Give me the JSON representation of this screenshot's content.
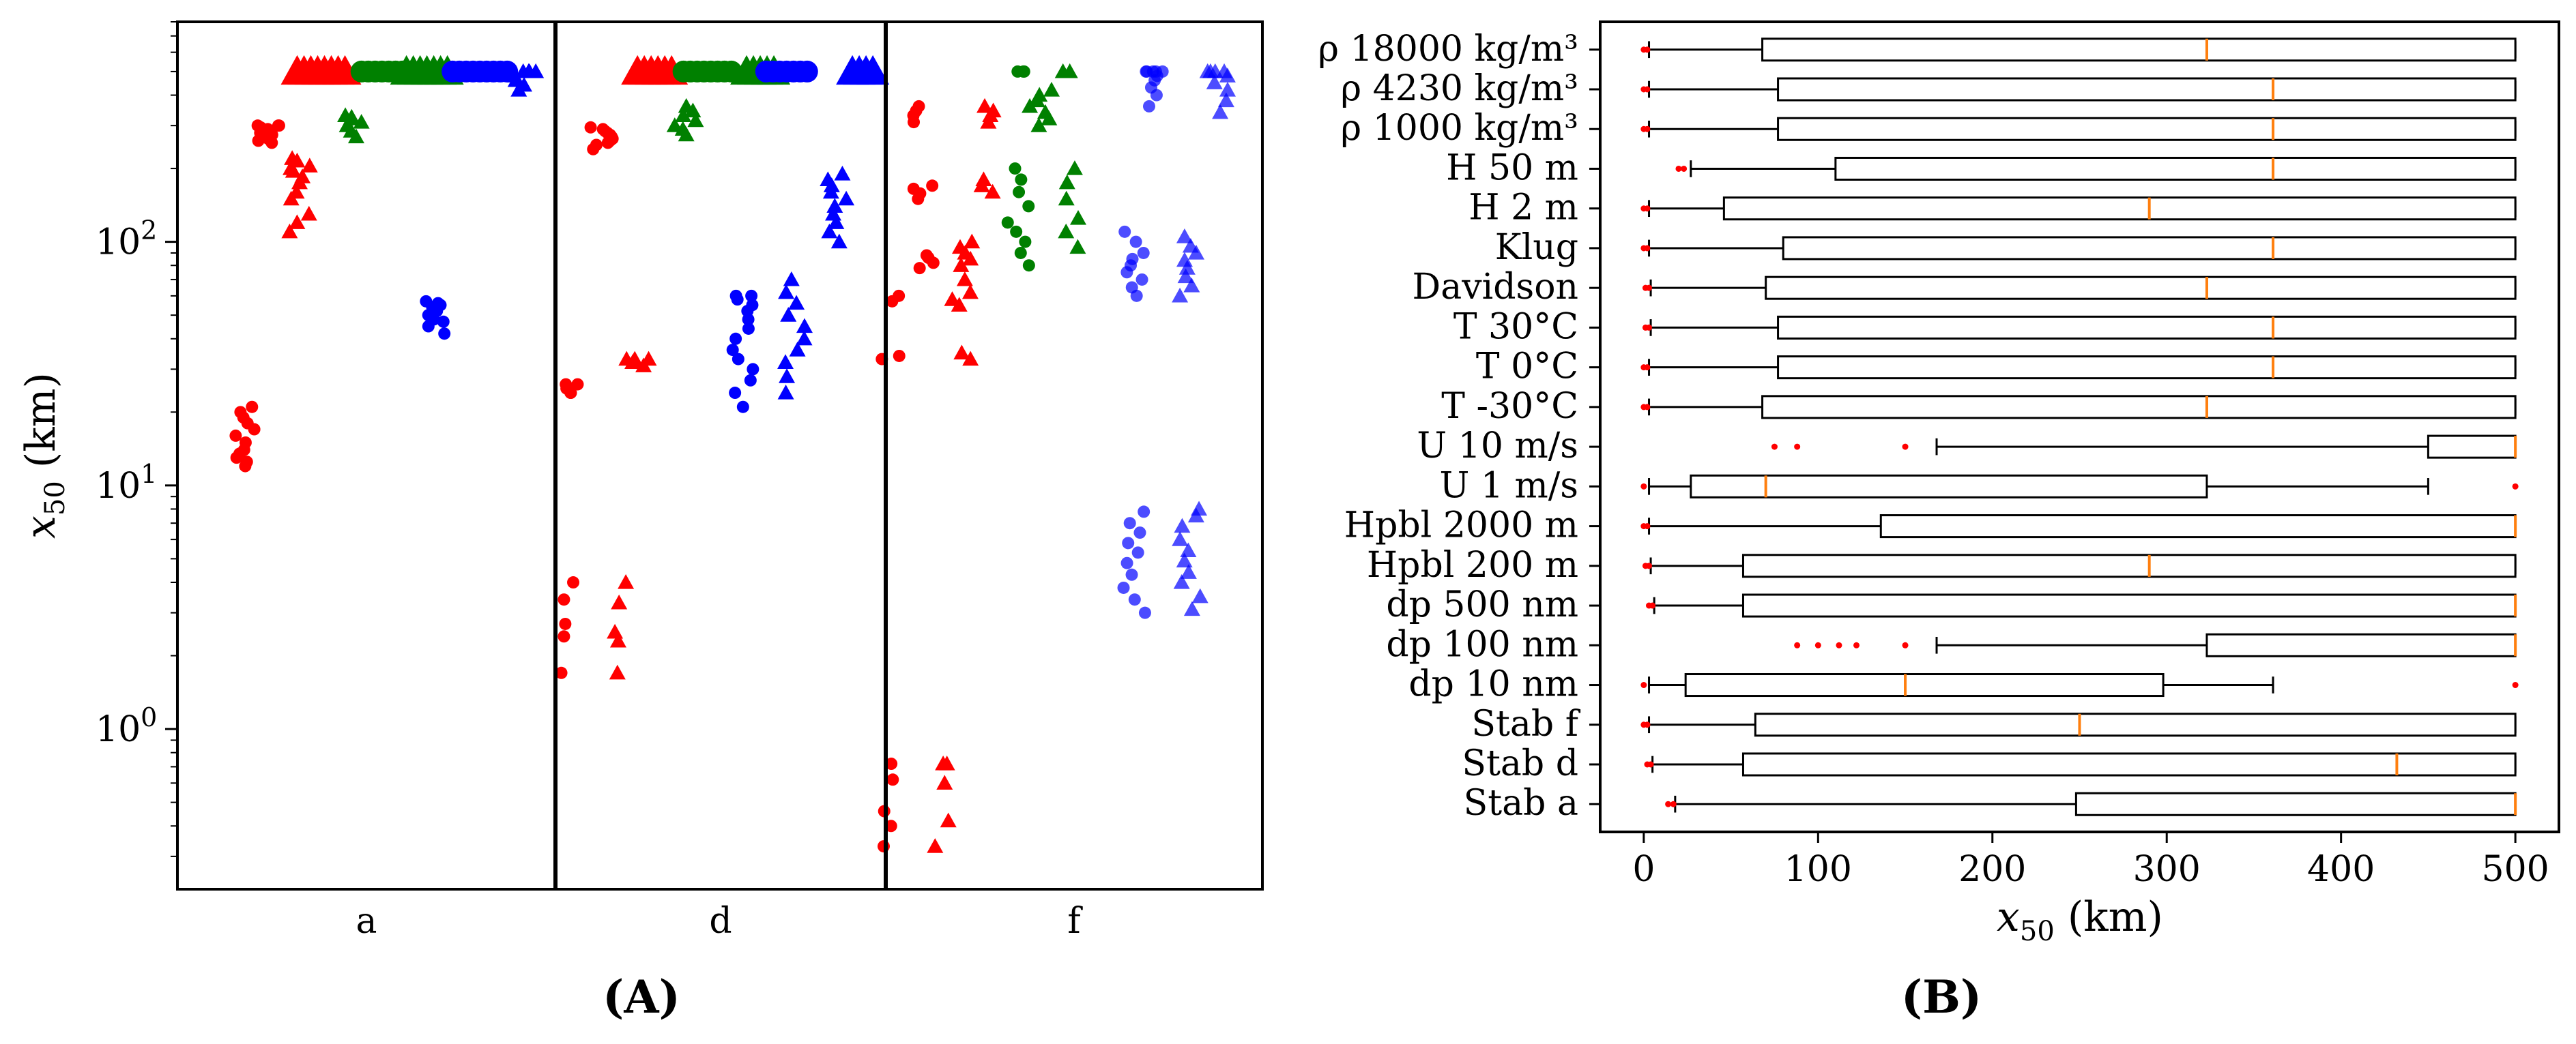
{
  "chart_data": [
    {
      "id": "A",
      "type": "scatter",
      "panel_label": "(A)",
      "yscale": "log",
      "ylabel": "x50 (km)",
      "ylim": [
        0.22,
        800
      ],
      "yticks": [
        {
          "value": 1,
          "label": "10^0"
        },
        {
          "value": 10,
          "label": "10^1"
        },
        {
          "value": 100,
          "label": "10^2"
        }
      ],
      "groups": [
        "a",
        "d",
        "f"
      ],
      "colors": {
        "red": "#ff0000",
        "green": "#008000",
        "blue": "#0000ff"
      },
      "clusters": [
        {
          "group": "a",
          "xc": 0.18,
          "color": "red",
          "marker": "circle",
          "values": [
            12,
            12.5,
            13,
            13.5,
            14,
            15,
            16,
            17,
            18,
            19,
            20,
            21
          ]
        },
        {
          "group": "a",
          "xc": 0.24,
          "color": "red",
          "marker": "circle",
          "values": [
            255,
            260,
            265,
            270,
            275,
            280,
            285,
            290,
            295,
            300,
            300,
            300
          ]
        },
        {
          "group": "a",
          "xc": 0.32,
          "color": "red",
          "marker": "triangle",
          "values": [
            110,
            120,
            130,
            150,
            160,
            175,
            185,
            195,
            200,
            205,
            215,
            220
          ]
        },
        {
          "group": "a",
          "xc": 0.38,
          "color": "red",
          "marker": "triangle",
          "values": [
            500,
            500,
            500,
            500,
            500,
            500,
            500,
            500
          ]
        },
        {
          "group": "a",
          "xc": 0.47,
          "color": "green",
          "marker": "triangle",
          "values": [
            270,
            285,
            300,
            310,
            320,
            325,
            330
          ]
        },
        {
          "group": "a",
          "xc": 0.55,
          "color": "green",
          "marker": "circle",
          "values": [
            500,
            500,
            500,
            500,
            500,
            500,
            500,
            500
          ]
        },
        {
          "group": "a",
          "xc": 0.66,
          "color": "green",
          "marker": "triangle",
          "values": [
            500,
            500,
            500,
            500,
            500,
            500,
            500
          ]
        },
        {
          "group": "a",
          "xc": 0.68,
          "color": "blue",
          "marker": "circle",
          "values": [
            42,
            45,
            47,
            48,
            50,
            52,
            54,
            55,
            56,
            57
          ]
        },
        {
          "group": "a",
          "xc": 0.8,
          "color": "blue",
          "marker": "circle",
          "values": [
            500,
            500,
            500,
            500,
            500,
            500,
            500,
            500,
            500
          ]
        },
        {
          "group": "a",
          "xc": 0.92,
          "color": "blue",
          "marker": "triangle",
          "values": [
            420,
            440,
            460,
            480,
            500,
            500,
            500,
            500
          ]
        },
        {
          "group": "d",
          "xc": 0.03,
          "color": "red",
          "marker": "circle",
          "values": [
            1.7,
            2.4,
            2.7,
            3.4,
            4.0
          ]
        },
        {
          "group": "d",
          "xc": 0.05,
          "color": "red",
          "marker": "circle",
          "values": [
            24,
            24,
            25,
            26,
            26
          ]
        },
        {
          "group": "d",
          "xc": 0.14,
          "color": "red",
          "marker": "circle",
          "values": [
            240,
            250,
            255,
            260,
            265,
            270,
            275,
            280,
            285,
            290,
            295
          ]
        },
        {
          "group": "d",
          "xc": 0.2,
          "color": "red",
          "marker": "triangle",
          "values": [
            1.7,
            2.3,
            2.5,
            3.3,
            4.0
          ]
        },
        {
          "group": "d",
          "xc": 0.25,
          "color": "red",
          "marker": "triangle",
          "values": [
            31,
            32,
            33,
            33,
            33
          ]
        },
        {
          "group": "d",
          "xc": 0.3,
          "color": "red",
          "marker": "triangle",
          "values": [
            500,
            500,
            500,
            500,
            500,
            500
          ]
        },
        {
          "group": "d",
          "xc": 0.39,
          "color": "green",
          "marker": "triangle",
          "values": [
            275,
            290,
            300,
            315,
            330,
            345,
            360
          ]
        },
        {
          "group": "d",
          "xc": 0.46,
          "color": "green",
          "marker": "circle",
          "values": [
            500,
            500,
            500,
            500,
            500,
            500,
            500,
            500
          ]
        },
        {
          "group": "d",
          "xc": 0.62,
          "color": "green",
          "marker": "triangle",
          "values": [
            500,
            500,
            500,
            500,
            500
          ]
        },
        {
          "group": "d",
          "xc": 0.57,
          "color": "blue",
          "marker": "circle",
          "values": [
            21,
            24,
            27,
            30,
            33,
            36,
            40,
            44,
            48,
            52,
            55,
            58,
            60,
            60
          ]
        },
        {
          "group": "d",
          "xc": 0.7,
          "color": "blue",
          "marker": "circle",
          "values": [
            500,
            500,
            500,
            500,
            500,
            500,
            500
          ]
        },
        {
          "group": "d",
          "xc": 0.73,
          "color": "blue",
          "marker": "triangle",
          "values": [
            24,
            28,
            32,
            36,
            40,
            45,
            50,
            56,
            62,
            70
          ]
        },
        {
          "group": "d",
          "xc": 0.86,
          "color": "blue",
          "marker": "triangle",
          "values": [
            100,
            110,
            120,
            130,
            140,
            150,
            160,
            170,
            180,
            190
          ]
        },
        {
          "group": "d",
          "xc": 0.93,
          "color": "blue",
          "marker": "triangle",
          "values": [
            500,
            500,
            500,
            500
          ]
        },
        {
          "group": "f",
          "xc": 0.02,
          "color": "red",
          "marker": "circle",
          "values": [
            0.33,
            0.4,
            0.46,
            0.62,
            0.72,
            33,
            34,
            57,
            60
          ]
        },
        {
          "group": "f",
          "xc": 0.1,
          "color": "red",
          "marker": "circle",
          "values": [
            78,
            82,
            86,
            88,
            150,
            158,
            165,
            170,
            310,
            330,
            345,
            360
          ]
        },
        {
          "group": "f",
          "xc": 0.16,
          "color": "red",
          "marker": "triangle",
          "values": [
            0.33,
            0.42,
            0.6,
            0.72,
            0.72
          ]
        },
        {
          "group": "f",
          "xc": 0.2,
          "color": "red",
          "marker": "triangle",
          "values": [
            33,
            35,
            55,
            58,
            62,
            70,
            80,
            85,
            90,
            95,
            100
          ]
        },
        {
          "group": "f",
          "xc": 0.26,
          "color": "red",
          "marker": "triangle",
          "values": [
            160,
            170,
            180,
            310,
            330,
            345,
            360
          ]
        },
        {
          "group": "f",
          "xc": 0.35,
          "color": "green",
          "marker": "circle",
          "values": [
            80,
            90,
            100,
            110,
            120,
            140,
            160,
            180,
            200,
            500,
            500,
            500
          ]
        },
        {
          "group": "f",
          "xc": 0.41,
          "color": "green",
          "marker": "triangle",
          "values": [
            300,
            320,
            340,
            360,
            380,
            400,
            420
          ]
        },
        {
          "group": "f",
          "xc": 0.5,
          "color": "green",
          "marker": "triangle",
          "values": [
            95,
            110,
            125,
            150,
            175,
            200,
            500,
            500
          ]
        },
        {
          "group": "f",
          "xc": 0.66,
          "color": "blue",
          "marker": "circle",
          "values": [
            3.0,
            3.4,
            3.8,
            4.3,
            4.8,
            5.3,
            5.8,
            6.4,
            7.0,
            7.8,
            60,
            65,
            70,
            75,
            80,
            85,
            90,
            100,
            110
          ]
        },
        {
          "group": "f",
          "xc": 0.72,
          "color": "blue",
          "marker": "circle",
          "values": [
            360,
            400,
            430,
            460,
            480,
            500,
            500,
            500,
            500,
            500
          ]
        },
        {
          "group": "f",
          "xc": 0.81,
          "color": "blue",
          "marker": "triangle",
          "values": [
            3.1,
            3.5,
            4.0,
            4.4,
            4.9,
            5.4,
            6.0,
            6.8,
            7.5,
            8.0,
            60,
            66,
            72,
            78,
            84,
            90,
            96,
            105
          ]
        },
        {
          "group": "f",
          "xc": 0.88,
          "color": "blue",
          "marker": "triangle",
          "values": [
            340,
            380,
            420,
            450,
            480,
            500,
            500,
            500,
            500
          ]
        }
      ]
    },
    {
      "id": "B",
      "type": "boxplot",
      "orientation": "horizontal",
      "panel_label": "(B)",
      "xlabel": "x50 (km)",
      "xlim": [
        -25,
        525
      ],
      "xticks": [
        0,
        100,
        200,
        300,
        400,
        500
      ],
      "box_color": "#000000",
      "median_color": "#ff7f0e",
      "outlier_color": "#ff0000",
      "boxes": [
        {
          "label": "ρ 18000 kg/m³",
          "wl": 3,
          "q1": 68,
          "med": 323,
          "q3": 500,
          "wh": 500,
          "outliers": [
            0,
            2
          ]
        },
        {
          "label": "ρ 4230 kg/m³",
          "wl": 3,
          "q1": 77,
          "med": 361,
          "q3": 500,
          "wh": 500,
          "outliers": [
            0,
            2
          ]
        },
        {
          "label": "ρ 1000 kg/m³",
          "wl": 3,
          "q1": 77,
          "med": 361,
          "q3": 500,
          "wh": 500,
          "outliers": [
            0,
            2
          ]
        },
        {
          "label": "H 50 m",
          "wl": 27,
          "q1": 110,
          "med": 361,
          "q3": 500,
          "wh": 500,
          "outliers": [
            20,
            23
          ]
        },
        {
          "label": "H 2 m",
          "wl": 3,
          "q1": 46,
          "med": 290,
          "q3": 500,
          "wh": 500,
          "outliers": [
            0,
            2
          ]
        },
        {
          "label": "Klug",
          "wl": 3,
          "q1": 80,
          "med": 361,
          "q3": 500,
          "wh": 500,
          "outliers": [
            0,
            2
          ]
        },
        {
          "label": "Davidson",
          "wl": 4,
          "q1": 70,
          "med": 323,
          "q3": 500,
          "wh": 500,
          "outliers": [
            1,
            3
          ]
        },
        {
          "label": "T 30°C",
          "wl": 4,
          "q1": 77,
          "med": 361,
          "q3": 500,
          "wh": 500,
          "outliers": [
            1,
            3
          ]
        },
        {
          "label": "T 0°C",
          "wl": 3,
          "q1": 77,
          "med": 361,
          "q3": 500,
          "wh": 500,
          "outliers": [
            0,
            2
          ]
        },
        {
          "label": "T -30°C",
          "wl": 3,
          "q1": 68,
          "med": 323,
          "q3": 500,
          "wh": 500,
          "outliers": [
            0,
            2
          ]
        },
        {
          "label": "U 10 m/s",
          "wl": 168,
          "q1": 450,
          "med": 500,
          "q3": 500,
          "wh": 500,
          "outliers": [
            75,
            88,
            150
          ]
        },
        {
          "label": "U 1 m/s",
          "wl": 3,
          "q1": 27,
          "med": 70,
          "q3": 323,
          "wh": 450,
          "outliers": [
            0,
            500
          ]
        },
        {
          "label": "Hpbl 2000 m",
          "wl": 3,
          "q1": 136,
          "med": 500,
          "q3": 500,
          "wh": 500,
          "outliers": [
            0,
            2
          ]
        },
        {
          "label": "Hpbl 200 m",
          "wl": 4,
          "q1": 57,
          "med": 290,
          "q3": 500,
          "wh": 500,
          "outliers": [
            1,
            3
          ]
        },
        {
          "label": "dp 500 nm",
          "wl": 6,
          "q1": 57,
          "med": 500,
          "q3": 500,
          "wh": 500,
          "outliers": [
            3,
            5
          ]
        },
        {
          "label": "dp 100 nm",
          "wl": 168,
          "q1": 323,
          "med": 500,
          "q3": 500,
          "wh": 500,
          "outliers": [
            88,
            100,
            112,
            122,
            150
          ]
        },
        {
          "label": "dp 10 nm",
          "wl": 3,
          "q1": 24,
          "med": 150,
          "q3": 298,
          "wh": 361,
          "outliers": [
            0,
            500
          ]
        },
        {
          "label": "Stab f",
          "wl": 3,
          "q1": 64,
          "med": 250,
          "q3": 500,
          "wh": 500,
          "outliers": [
            0,
            2
          ]
        },
        {
          "label": "Stab d",
          "wl": 5,
          "q1": 57,
          "med": 432,
          "q3": 500,
          "wh": 500,
          "outliers": [
            2,
            4
          ]
        },
        {
          "label": "Stab a",
          "wl": 18,
          "q1": 248,
          "med": 500,
          "q3": 500,
          "wh": 500,
          "outliers": [
            14,
            17
          ]
        }
      ]
    }
  ]
}
